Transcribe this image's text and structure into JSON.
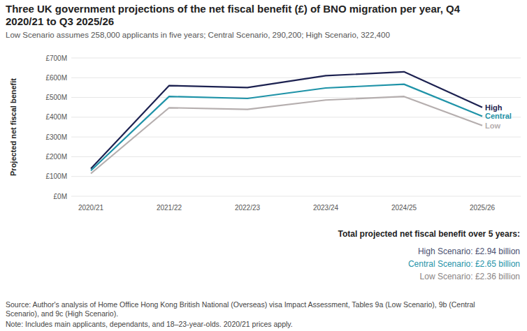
{
  "chart_data": {
    "type": "line",
    "title": "Three UK government projections of the net fiscal benefit (£) of BNO migration per year, Q4 2020/21 to Q3 2025/26",
    "subtitle": "Low Scenario assumes 258,000 applicants in five years; Central Scenario, 290,200; High Scenario, 322,400",
    "y_label": "Projected net fiscal benefit",
    "categories": [
      "2020/21",
      "2021/22",
      "2022/23",
      "2023/24",
      "2024/25",
      "2025/26"
    ],
    "series": [
      {
        "name": "High",
        "color": "#1c2150",
        "values": [
          140,
          560,
          550,
          610,
          630,
          450
        ]
      },
      {
        "name": "Central",
        "color": "#1f93a8",
        "values": [
          130,
          505,
          495,
          548,
          567,
          405
        ]
      },
      {
        "name": "Low",
        "color": "#b5aeae",
        "values": [
          115,
          448,
          440,
          487,
          505,
          358
        ]
      }
    ],
    "ylim": [
      0,
      700
    ],
    "yticks": [
      {
        "value": 0,
        "label": "£0M"
      },
      {
        "value": 100,
        "label": "£100M"
      },
      {
        "value": 200,
        "label": "£200M"
      },
      {
        "value": 300,
        "label": "£300M"
      },
      {
        "value": 400,
        "label": "£400M"
      },
      {
        "value": 500,
        "label": "£500M"
      },
      {
        "value": 600,
        "label": "£600M"
      },
      {
        "value": 700,
        "label": "£700M"
      }
    ],
    "grid": true,
    "totals_title": "Total projected net fiscal benefit over 5 years:",
    "totals": [
      "High Scenario: £2.94 billion",
      "Central Scenario: £2.65 billion",
      "Low Scenario: £2.36 billion"
    ],
    "source": "Source: Author's analysis of Home Office Hong Kong British National (Overseas) visa Impact Assessment, Tables 9a (Low Scenario), 9b (Central Scenario), and 9c (High Scenario).",
    "note": "Note: Includes main applicants, dependants, and 18–23-year-olds. 2020/21 prices apply."
  }
}
